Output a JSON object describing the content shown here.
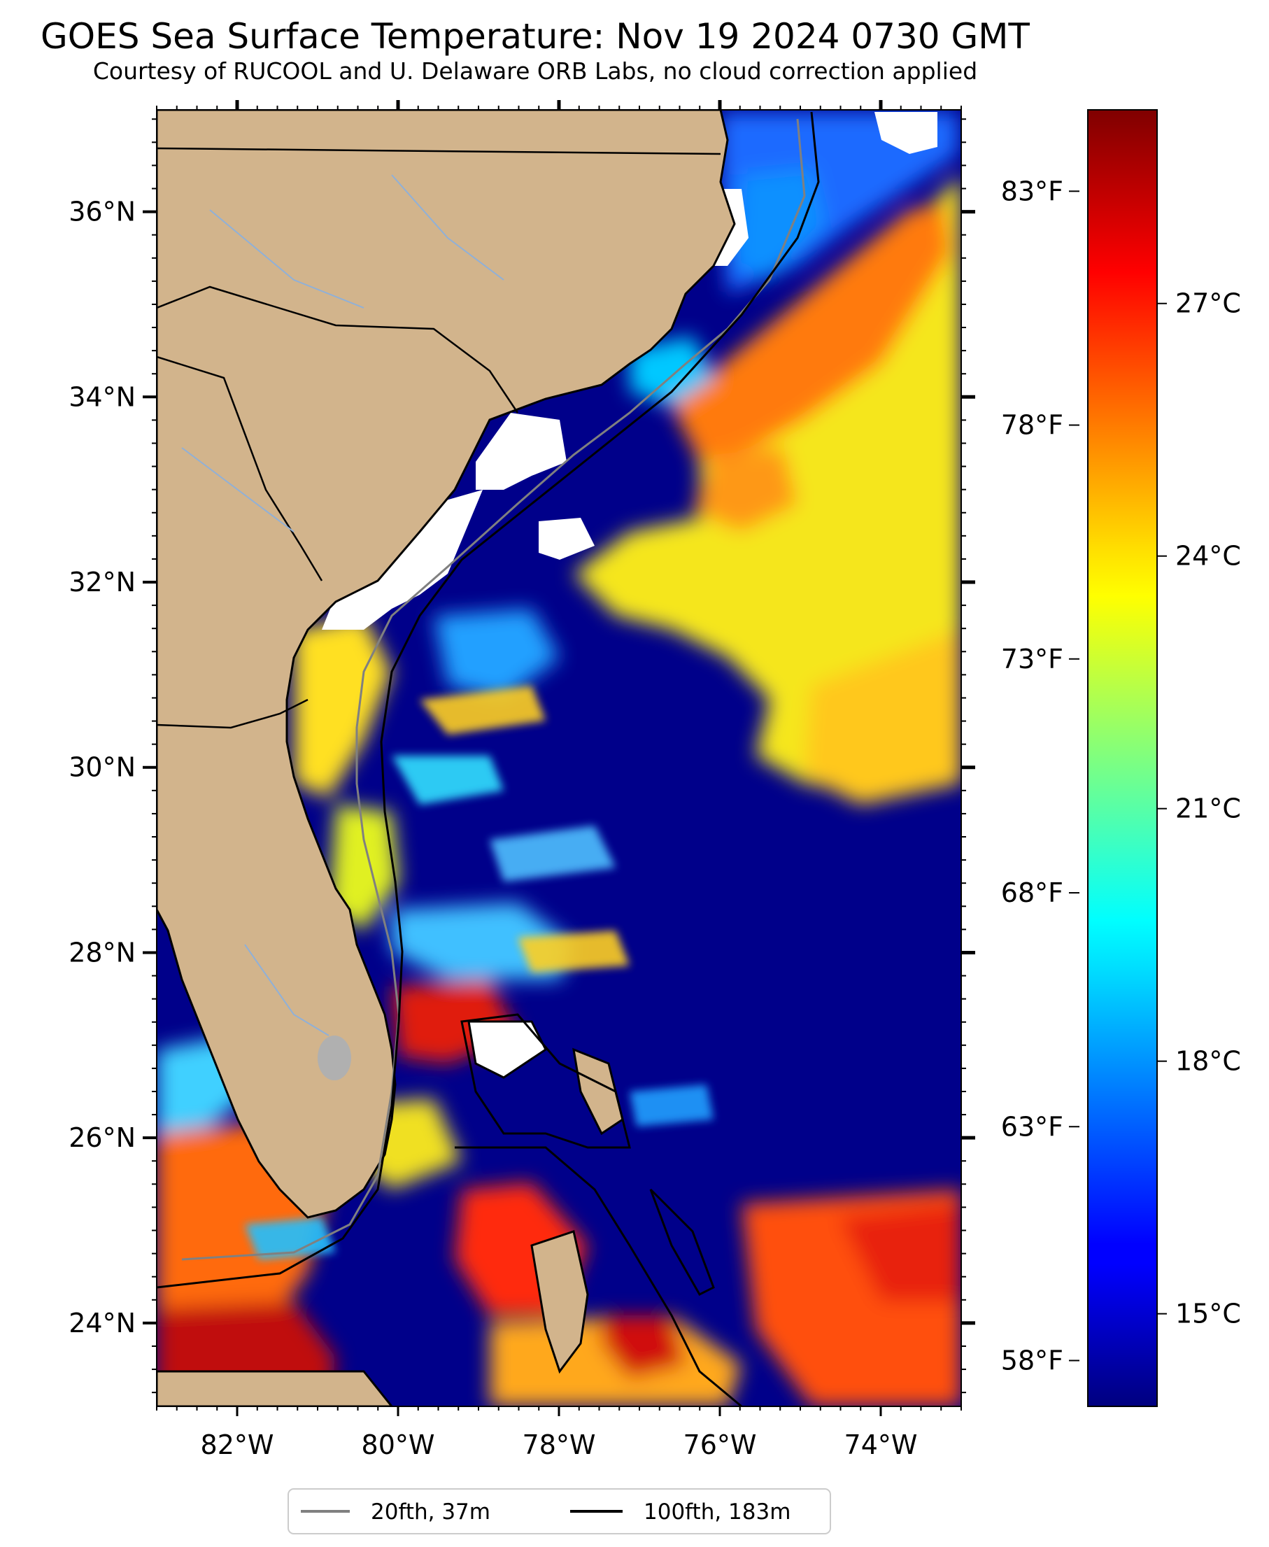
{
  "title": "GOES Sea Surface Temperature: Nov 19 2024 0730 GMT",
  "subtitle": "Courtesy of RUCOOL and U. Delaware ORB Labs, no cloud correction applied",
  "map": {
    "lon_range": [
      -83,
      -73
    ],
    "lat_range": [
      23.1,
      37.1
    ],
    "lon_ticks": [
      {
        "lon": -82,
        "label": "82°W"
      },
      {
        "lon": -80,
        "label": "80°W"
      },
      {
        "lon": -78,
        "label": "78°W"
      },
      {
        "lon": -76,
        "label": "76°W"
      },
      {
        "lon": -74,
        "label": "74°W"
      }
    ],
    "lat_ticks": [
      {
        "lat": 36,
        "label": "36°N"
      },
      {
        "lat": 34,
        "label": "34°N"
      },
      {
        "lat": 32,
        "label": "32°N"
      },
      {
        "lat": 30,
        "label": "30°N"
      },
      {
        "lat": 28,
        "label": "28°N"
      },
      {
        "lat": 26,
        "label": "26°N"
      },
      {
        "lat": 24,
        "label": "24°N"
      }
    ],
    "fahrenheit_ticks": [
      {
        "value": 83,
        "label": "83°F"
      },
      {
        "value": 78,
        "label": "78°F"
      },
      {
        "value": 73,
        "label": "73°F"
      },
      {
        "value": 68,
        "label": "68°F"
      },
      {
        "value": 63,
        "label": "63°F"
      },
      {
        "value": 58,
        "label": "58°F"
      }
    ],
    "land_color": "#d2b48c",
    "no_data_color": "#ffffff"
  },
  "colorbar": {
    "colormap": "jet",
    "range_c": [
      13.9,
      29.3
    ],
    "ticks": [
      {
        "value": 27,
        "label": "27°C"
      },
      {
        "value": 24,
        "label": "24°C"
      },
      {
        "value": 21,
        "label": "21°C"
      },
      {
        "value": 18,
        "label": "18°C"
      },
      {
        "value": 15,
        "label": "15°C"
      }
    ]
  },
  "legend": {
    "items": [
      {
        "label": "20fth, 37m",
        "color": "#808080"
      },
      {
        "label": "100fth, 183m",
        "color": "#000000"
      }
    ]
  }
}
